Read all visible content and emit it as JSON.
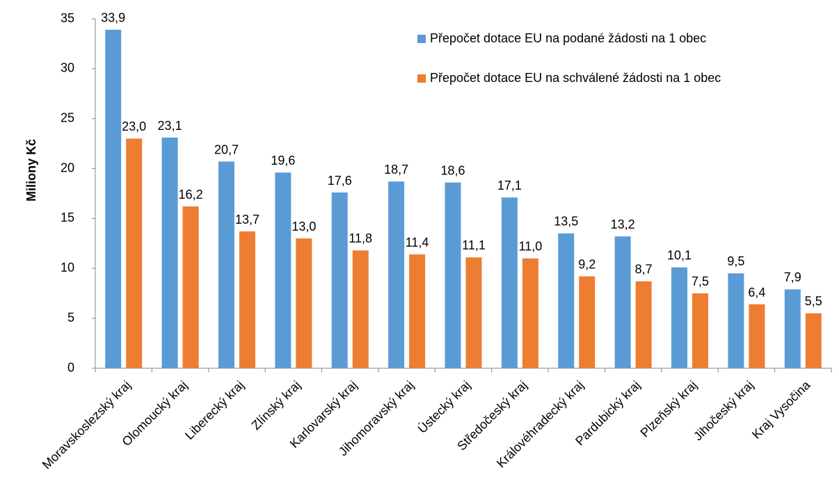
{
  "chart_data": {
    "type": "bar",
    "y_label": "Miliony Kč",
    "categories": [
      "Moravskoslezský kraj",
      "Olomoucký kraj",
      "Liberecký kraj",
      "Zlínský kraj",
      "Karlovarský kraj",
      "Jihomoravský kraj",
      "Ústecký kraj",
      "Středočeský kraj",
      "Královéhradecký kraj",
      "Pardubický kraj",
      "Plzeňský kraj",
      "Jihočeský kraj",
      "Kraj Vysočina"
    ],
    "series": [
      {
        "name": "Přepočet dotace EU na podané žádosti na 1 obec",
        "color": "#5b9bd5",
        "values": [
          33.9,
          23.1,
          20.7,
          19.6,
          17.6,
          18.7,
          18.6,
          17.1,
          13.5,
          13.2,
          10.1,
          9.5,
          7.9
        ],
        "value_labels": [
          "33,9",
          "23,1",
          "20,7",
          "19,6",
          "17,6",
          "18,7",
          "18,6",
          "17,1",
          "13,5",
          "13,2",
          "10,1",
          "9,5",
          "7,9"
        ]
      },
      {
        "name": "Přepočet dotace EU na schválené žádosti na 1 obec",
        "color": "#ed7d31",
        "values": [
          23.0,
          16.2,
          13.7,
          13.0,
          11.8,
          11.4,
          11.1,
          11.0,
          9.2,
          8.7,
          7.5,
          6.4,
          5.5
        ],
        "value_labels": [
          "23,0",
          "16,2",
          "13,7",
          "13,0",
          "11,8",
          "11,4",
          "11,1",
          "11,0",
          "9,2",
          "8,7",
          "7,5",
          "6,4",
          "5,5"
        ]
      }
    ],
    "ylim": [
      0,
      35
    ],
    "yticks": [
      0,
      5,
      10,
      15,
      20,
      25,
      30,
      35
    ],
    "grid": false,
    "legend": "top-right"
  }
}
